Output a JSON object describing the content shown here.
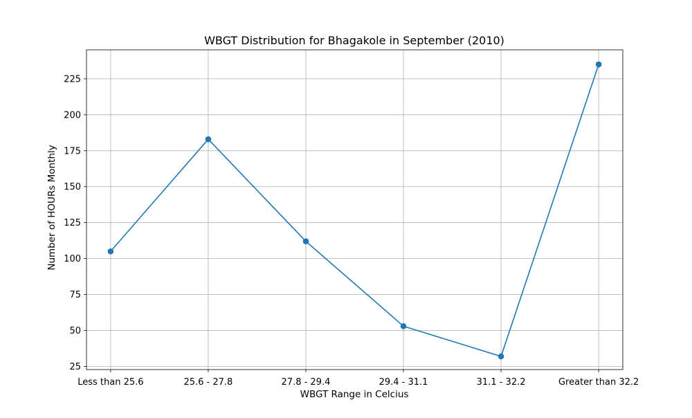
{
  "chart_data": {
    "type": "line",
    "title": "WBGT Distribution for Bhagakole in September (2010)",
    "xlabel": "WBGT Range in Celcius",
    "ylabel": "Number of HOURs Monthly",
    "categories": [
      "Less than 25.6",
      "25.6 - 27.8",
      "27.8 - 29.4",
      "29.4 - 31.1",
      "31.1 - 32.2",
      "Greater than 32.2"
    ],
    "series": [
      {
        "values": [
          105,
          183,
          112,
          53,
          32,
          235
        ],
        "color": "#1f77b4",
        "marker": "circle"
      }
    ],
    "ylim": [
      22.85,
      245.15
    ],
    "yticks": [
      25,
      50,
      75,
      100,
      125,
      150,
      175,
      200,
      225
    ],
    "grid": true,
    "legend": "none"
  }
}
